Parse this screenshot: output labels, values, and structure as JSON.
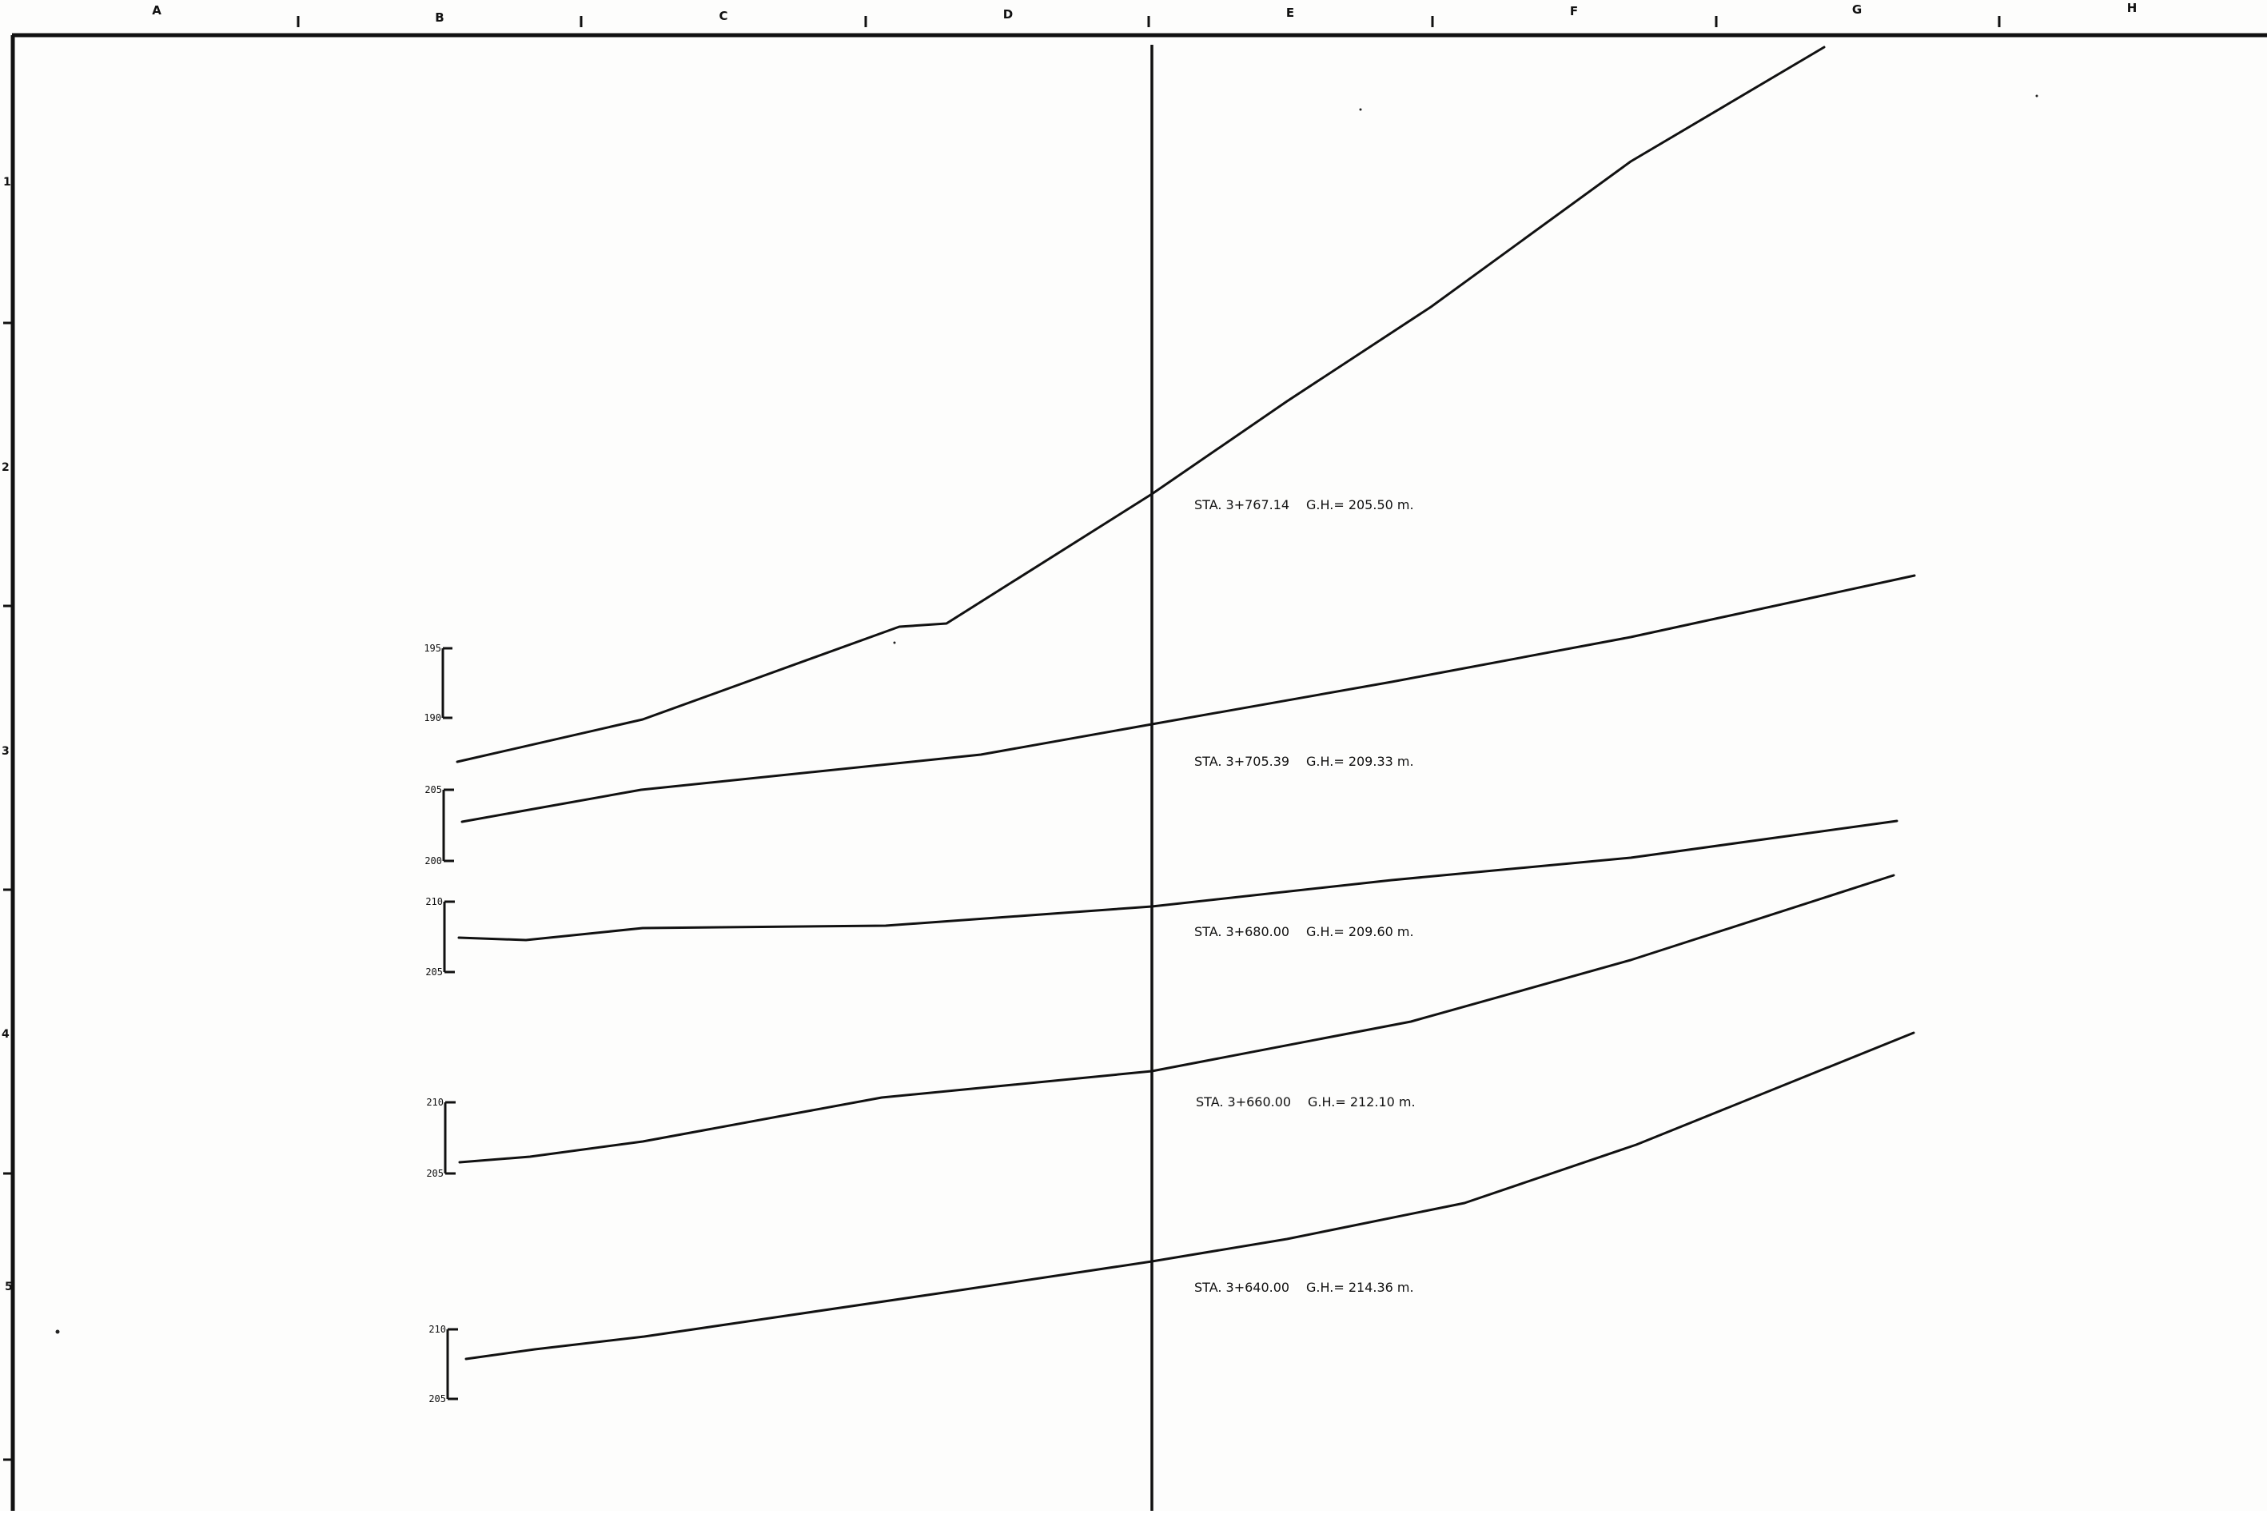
{
  "drawing": {
    "grid_columns": [
      "A",
      "B",
      "C",
      "D",
      "E",
      "F",
      "G",
      "H"
    ],
    "grid_rows": [
      "1",
      "2",
      "3",
      "4",
      "5"
    ]
  },
  "sections": [
    {
      "station": "STA. 3+767.14",
      "gh": "G.H.= 205.50 m.",
      "scale_top": "195",
      "scale_bottom": "190"
    },
    {
      "station": "STA. 3+705.39",
      "gh": "G.H.= 209.33 m.",
      "scale_top": "205",
      "scale_bottom": "200"
    },
    {
      "station": "STA. 3+680.00",
      "gh": "G.H.= 209.60 m.",
      "scale_top": "210",
      "scale_bottom": "205"
    },
    {
      "station": "STA. 3+660.00",
      "gh": "G.H.= 212.10 m.",
      "scale_top": "210",
      "scale_bottom": "205"
    },
    {
      "station": "STA. 3+640.00",
      "gh": "G.H.= 214.36 m.",
      "scale_top": "210",
      "scale_bottom": "205"
    }
  ]
}
